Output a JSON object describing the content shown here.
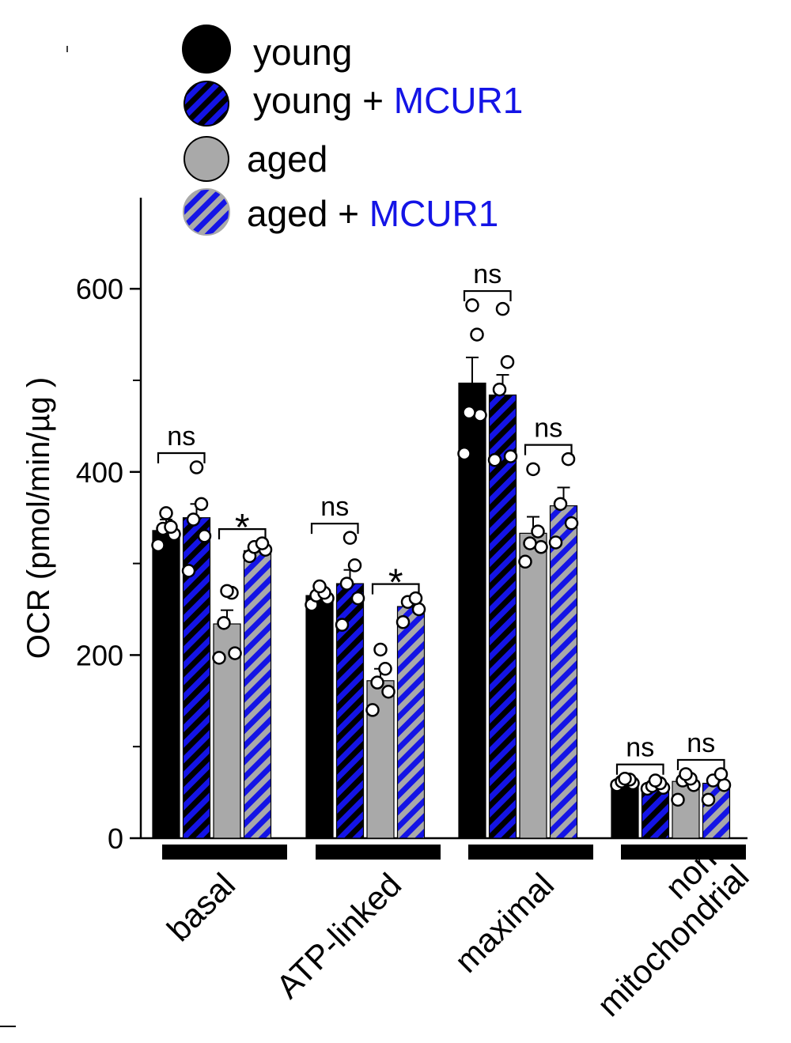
{
  "chart_data": {
    "type": "bar",
    "ylabel": "OCR (pmol/min/µg )",
    "ylim": [
      0,
      700
    ],
    "yticks": [
      0,
      200,
      400,
      600
    ],
    "yminor": [
      100,
      300,
      500
    ],
    "categories": [
      "basal",
      "ATP-linked",
      "maximal",
      "non-\nmitochondrial"
    ],
    "category_labels": [
      [
        "basal"
      ],
      [
        "ATP-linked"
      ],
      [
        "maximal"
      ],
      [
        "non-",
        "mitochondrial"
      ]
    ],
    "colors": {
      "black": "#000000",
      "blue": "#1414e6",
      "gray": "#a9a9a9",
      "axis": "#000000"
    },
    "series": [
      {
        "name": "young",
        "prefix": "young",
        "suffix": "",
        "pattern": "black",
        "values": [
          336,
          265,
          497,
          62
        ],
        "errors": [
          12,
          8,
          28,
          2
        ],
        "points": [
          [
            320,
            332,
            338,
            340,
            355
          ],
          [
            255,
            262,
            265,
            268,
            275
          ],
          [
            420,
            462,
            465,
            550,
            582
          ],
          [
            58,
            60,
            62,
            64,
            65
          ]
        ]
      },
      {
        "name": "young + MCUR1",
        "prefix": "young + ",
        "suffix": "MCUR1",
        "pattern": "black-blue-stripes",
        "values": [
          350,
          278,
          484,
          57
        ],
        "errors": [
          15,
          15,
          22,
          3
        ],
        "points": [
          [
            292,
            330,
            348,
            365,
            405
          ],
          [
            233,
            262,
            278,
            298,
            328
          ],
          [
            413,
            417,
            490,
            520,
            578
          ],
          [
            54,
            55,
            57,
            60,
            63
          ]
        ]
      },
      {
        "name": "aged",
        "prefix": "aged",
        "suffix": "",
        "pattern": "gray",
        "values": [
          234,
          172,
          333,
          62
        ],
        "errors": [
          15,
          13,
          18,
          4
        ],
        "points": [
          [
            197,
            202,
            235,
            268,
            270
          ],
          [
            140,
            160,
            170,
            185,
            206
          ],
          [
            302,
            318,
            322,
            335,
            403
          ],
          [
            42,
            58,
            63,
            65,
            70
          ]
        ]
      },
      {
        "name": "aged + MCUR1",
        "prefix": "aged + ",
        "suffix": "MCUR1",
        "pattern": "gray-blue-stripes",
        "values": [
          314,
          253,
          363,
          60
        ],
        "errors": [
          5,
          5,
          20,
          4
        ],
        "points": [
          [
            308,
            315,
            318,
            322
          ],
          [
            236,
            250,
            258,
            262
          ],
          [
            323,
            344,
            365,
            414
          ],
          [
            42,
            58,
            63,
            70
          ]
        ]
      }
    ],
    "significance": [
      {
        "category": 0,
        "from": 0,
        "to": 1,
        "label": "ns"
      },
      {
        "category": 0,
        "from": 2,
        "to": 3,
        "label": "*"
      },
      {
        "category": 1,
        "from": 0,
        "to": 1,
        "label": "ns"
      },
      {
        "category": 1,
        "from": 2,
        "to": 3,
        "label": "*"
      },
      {
        "category": 2,
        "from": 0,
        "to": 1,
        "label": "ns"
      },
      {
        "category": 2,
        "from": 2,
        "to": 3,
        "label": "ns"
      },
      {
        "category": 3,
        "from": 0,
        "to": 1,
        "label": "ns"
      },
      {
        "category": 3,
        "from": 2,
        "to": 3,
        "label": "ns"
      }
    ]
  }
}
